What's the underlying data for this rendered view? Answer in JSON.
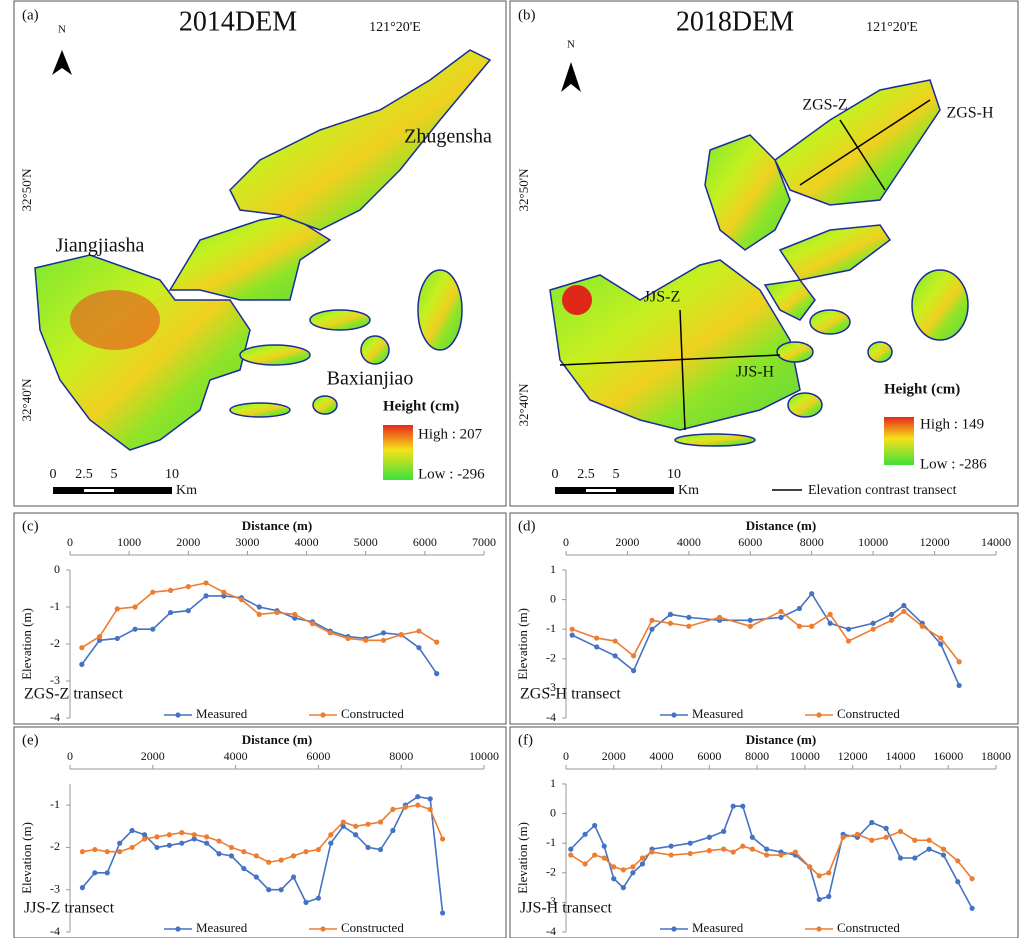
{
  "maps": [
    {
      "label": "(a)",
      "title": "2014DEM",
      "lon_label": "121°20'E",
      "lat_labels": [
        "32°50'N",
        "32°40'N"
      ],
      "north": "N",
      "places": [
        "Zhugensha",
        "Jiangjiasha",
        "Baxianjiao"
      ],
      "legend_title": "Height (cm)",
      "high": "High : 207",
      "low": "Low : -296",
      "scale": [
        "0",
        "2.5",
        "5",
        "10"
      ],
      "scale_unit": "Km"
    },
    {
      "label": "(b)",
      "title": "2018DEM",
      "lon_label": "121°20'E",
      "lat_labels": [
        "32°50'N",
        "32°40'N"
      ],
      "north": "N",
      "transects": [
        "ZGS-Z",
        "ZGS-H",
        "JJS-Z",
        "JJS-H"
      ],
      "legend_title": "Height (cm)",
      "high": "High : 149",
      "low": "Low : -286",
      "scale": [
        "0",
        "2.5",
        "5",
        "10"
      ],
      "scale_unit": "Km",
      "transect_legend": "Elevation contrast transect"
    }
  ],
  "chart_data": [
    {
      "type": "line",
      "label": "(c)",
      "annotation": "ZGS-Z transect",
      "x_label": "Distance (m)",
      "y_label": "Elevation (m)",
      "xlim": [
        0,
        7000
      ],
      "xticks": [
        0,
        1000,
        2000,
        3000,
        4000,
        5000,
        6000,
        7000
      ],
      "ylim": [
        -4,
        0
      ],
      "yticks": [
        -4,
        -3,
        -2,
        -1,
        0
      ],
      "x": [
        200,
        500,
        800,
        1100,
        1400,
        1700,
        2000,
        2300,
        2600,
        2900,
        3200,
        3500,
        3800,
        4100,
        4400,
        4700,
        5000,
        5300,
        5600,
        5900,
        6200
      ],
      "series": [
        {
          "name": "Measured",
          "color": "#4472c4",
          "values": [
            -2.55,
            -1.9,
            -1.85,
            -1.6,
            -1.6,
            -1.15,
            -1.1,
            -0.7,
            -0.7,
            -0.75,
            -1.0,
            -1.1,
            -1.3,
            -1.4,
            -1.65,
            -1.8,
            -1.85,
            -1.7,
            -1.75,
            -2.1,
            -2.8
          ]
        },
        {
          "name": "Constructed",
          "color": "#ed7d31",
          "values": [
            -2.1,
            -1.8,
            -1.05,
            -1.0,
            -0.6,
            -0.55,
            -0.45,
            -0.35,
            -0.6,
            -0.8,
            -1.2,
            -1.15,
            -1.2,
            -1.45,
            -1.7,
            -1.85,
            -1.9,
            -1.9,
            -1.75,
            -1.65,
            -1.95
          ]
        }
      ]
    },
    {
      "type": "line",
      "label": "(d)",
      "annotation": "ZGS-H transect",
      "x_label": "Distance (m)",
      "y_label": "Elevation (m)",
      "xlim": [
        0,
        14000
      ],
      "xticks": [
        0,
        2000,
        4000,
        6000,
        8000,
        10000,
        12000,
        14000
      ],
      "ylim": [
        -4,
        1
      ],
      "yticks": [
        -4,
        -3,
        -2,
        -1,
        0,
        1
      ],
      "x": [
        200,
        1000,
        1600,
        2200,
        2800,
        3400,
        4000,
        5000,
        6000,
        7000,
        7600,
        8000,
        8600,
        9200,
        10000,
        10600,
        11000,
        11600,
        12200,
        12800
      ],
      "series": [
        {
          "name": "Measured",
          "color": "#4472c4",
          "values": [
            -1.2,
            -1.6,
            -1.9,
            -2.4,
            -1.0,
            -0.5,
            -0.6,
            -0.7,
            -0.7,
            -0.6,
            -0.3,
            0.2,
            -0.8,
            -1.0,
            -0.8,
            -0.5,
            -0.2,
            -0.8,
            -1.5,
            -2.9
          ]
        },
        {
          "name": "Constructed",
          "color": "#ed7d31",
          "values": [
            -1.0,
            -1.3,
            -1.4,
            -1.9,
            -0.7,
            -0.8,
            -0.9,
            -0.6,
            -0.9,
            -0.4,
            -0.9,
            -0.9,
            -0.5,
            -1.4,
            -1.0,
            -0.7,
            -0.4,
            -0.9,
            -1.3,
            -2.1
          ]
        }
      ]
    },
    {
      "type": "line",
      "label": "(e)",
      "annotation": "JJS-Z transect",
      "x_label": "Distance (m)",
      "y_label": "Elevation (m)",
      "xlim": [
        0,
        10000
      ],
      "xticks": [
        0,
        2000,
        4000,
        6000,
        8000,
        10000
      ],
      "ylim": [
        -4,
        -0.5
      ],
      "yticks": [
        -4,
        -3,
        -2,
        -1
      ],
      "x": [
        300,
        600,
        900,
        1200,
        1500,
        1800,
        2100,
        2400,
        2700,
        3000,
        3300,
        3600,
        3900,
        4200,
        4500,
        4800,
        5100,
        5400,
        5700,
        6000,
        6300,
        6600,
        6900,
        7200,
        7500,
        7800,
        8100,
        8400,
        8700,
        9000
      ],
      "series": [
        {
          "name": "Measured",
          "color": "#4472c4",
          "values": [
            -2.95,
            -2.6,
            -2.6,
            -1.9,
            -1.6,
            -1.7,
            -2.0,
            -1.95,
            -1.9,
            -1.8,
            -1.9,
            -2.15,
            -2.2,
            -2.5,
            -2.7,
            -3.0,
            -3.0,
            -2.7,
            -3.3,
            -3.2,
            -1.9,
            -1.5,
            -1.7,
            -2.0,
            -2.05,
            -1.6,
            -1.0,
            -0.8,
            -0.85,
            -3.55
          ]
        },
        {
          "name": "Constructed",
          "color": "#ed7d31",
          "values": [
            -2.1,
            -2.05,
            -2.1,
            -2.1,
            -2.0,
            -1.8,
            -1.75,
            -1.7,
            -1.65,
            -1.7,
            -1.75,
            -1.85,
            -2.0,
            -2.1,
            -2.2,
            -2.35,
            -2.3,
            -2.2,
            -2.1,
            -2.05,
            -1.7,
            -1.4,
            -1.5,
            -1.45,
            -1.4,
            -1.1,
            -1.05,
            -1.0,
            -1.1,
            -1.8
          ]
        }
      ]
    },
    {
      "type": "line",
      "label": "(f)",
      "annotation": "JJS-H transect",
      "x_label": "Distance (m)",
      "y_label": "Elevation (m)",
      "xlim": [
        0,
        18000
      ],
      "xticks": [
        0,
        2000,
        4000,
        6000,
        8000,
        10000,
        12000,
        14000,
        16000,
        18000
      ],
      "ylim": [
        -4,
        1
      ],
      "yticks": [
        -4,
        -3,
        -2,
        -1,
        0,
        1
      ],
      "x": [
        200,
        800,
        1200,
        1600,
        2000,
        2400,
        2800,
        3200,
        3600,
        4400,
        5200,
        6000,
        6600,
        7000,
        7400,
        7800,
        8400,
        9000,
        9600,
        10200,
        10600,
        11000,
        11600,
        12200,
        12800,
        13400,
        14000,
        14600,
        15200,
        15800,
        16400,
        17000
      ],
      "series": [
        {
          "name": "Measured",
          "color": "#4472c4",
          "values": [
            -1.2,
            -0.7,
            -0.4,
            -1.1,
            -2.2,
            -2.5,
            -2.0,
            -1.7,
            -1.2,
            -1.1,
            -1.0,
            -0.8,
            -0.6,
            0.25,
            0.25,
            -0.8,
            -1.2,
            -1.3,
            -1.4,
            -1.8,
            -2.9,
            -2.8,
            -0.7,
            -0.8,
            -0.3,
            -0.5,
            -1.5,
            -1.5,
            -1.2,
            -1.4,
            -2.3,
            -3.2
          ]
        },
        {
          "name": "Constructed",
          "color": "#ed7d31",
          "values": [
            -1.4,
            -1.7,
            -1.4,
            -1.5,
            -1.8,
            -1.9,
            -1.8,
            -1.5,
            -1.3,
            -1.4,
            -1.35,
            -1.25,
            -1.2,
            -1.3,
            -1.1,
            -1.2,
            -1.4,
            -1.4,
            -1.3,
            -1.8,
            -2.1,
            -2.0,
            -0.8,
            -0.7,
            -0.9,
            -0.8,
            -0.6,
            -0.9,
            -0.9,
            -1.2,
            -1.6,
            -2.2
          ]
        }
      ]
    }
  ]
}
